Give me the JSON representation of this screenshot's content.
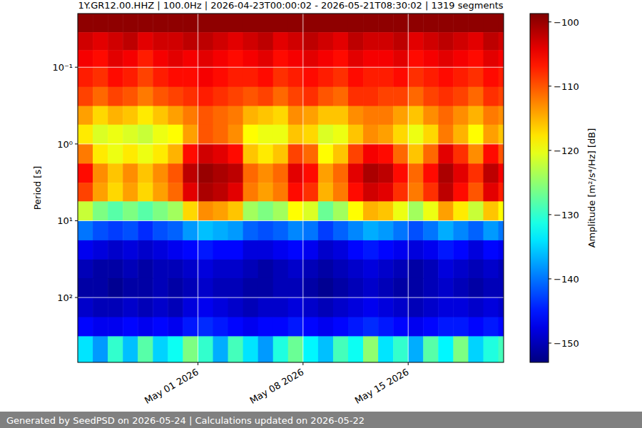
{
  "chart_data": {
    "type": "heatmap",
    "title": "1Y.GR12.00.HHZ | 100.0Hz | 2026-04-23T00:00:02 - 2026-05-21T08:30:02 | 1319 segments",
    "y_label": "Period [s]",
    "log": "y",
    "grid": true,
    "xlim": [
      "2026-04-23T00:00:02",
      "2026-05-21T08:30:02"
    ],
    "xticks": [
      {
        "value": "2026-05-01T00:00:00",
        "label": "May 01 2026"
      },
      {
        "value": "2026-05-08T00:00:00",
        "label": "May 08 2026"
      },
      {
        "value": "2026-05-15T00:00:00",
        "label": "May 15 2026"
      }
    ],
    "ylim": [
      0.02,
      700
    ],
    "yticks": [
      {
        "value": 0.1,
        "label": "10⁻¹"
      },
      {
        "value": 1,
        "label": "10⁰"
      },
      {
        "value": 10,
        "label": "10¹"
      },
      {
        "value": 100,
        "label": "10²"
      }
    ],
    "x": [
      "2026-04-23T00:00:02",
      "2026-04-24T00:00:02",
      "2026-04-25T00:00:02",
      "2026-04-26T00:00:02",
      "2026-04-27T00:00:02",
      "2026-04-28T00:00:02",
      "2026-04-29T00:00:02",
      "2026-04-30T00:00:02",
      "2026-05-01T00:00:02",
      "2026-05-02T00:00:02",
      "2026-05-03T00:00:02",
      "2026-05-04T00:00:02",
      "2026-05-05T00:00:02",
      "2026-05-06T00:00:02",
      "2026-05-07T00:00:02",
      "2026-05-08T00:00:02",
      "2026-05-09T00:00:02",
      "2026-05-10T00:00:02",
      "2026-05-11T00:00:02",
      "2026-05-12T00:00:02",
      "2026-05-13T00:00:02",
      "2026-05-14T00:00:02",
      "2026-05-15T00:00:02",
      "2026-05-16T00:00:02",
      "2026-05-17T00:00:02",
      "2026-05-18T00:00:02",
      "2026-05-19T00:00:02",
      "2026-05-20T00:00:02",
      "2026-05-21T00:00:02",
      "2026-05-21T08:30:02"
    ],
    "y": [
      0.02,
      0.035,
      0.06,
      0.1,
      0.18,
      0.32,
      0.56,
      1,
      1.8,
      3.2,
      5.6,
      10,
      18,
      32,
      56,
      100,
      180,
      320,
      700
    ],
    "values": [
      [
        -99.5,
        -99.5,
        -99.5,
        -99.5,
        -99.5,
        -99.5,
        -99.5,
        -99.5,
        -99.5,
        -99.5,
        -99.5,
        -99.5,
        -99.5,
        -99.5,
        -99.5,
        -99.5,
        -99.5,
        -99.5,
        -99.5,
        -99.5,
        -99.5,
        -99.5,
        -99.5,
        -99.5,
        -99.5,
        -99.5,
        -99.5,
        -99.5,
        -99.5
      ],
      [
        -103,
        -104,
        -103,
        -102,
        -104,
        -103,
        -103,
        -102,
        -102,
        -103,
        -104,
        -103,
        -102,
        -104,
        -103,
        -102,
        -103,
        -104,
        -102,
        -103,
        -103,
        -102,
        -104,
        -103,
        -102,
        -103,
        -104,
        -102,
        -103
      ],
      [
        -105,
        -106,
        -104,
        -105,
        -107,
        -105,
        -104,
        -105,
        -104,
        -105,
        -106,
        -105,
        -104,
        -106,
        -105,
        -104,
        -105,
        -106,
        -104,
        -105,
        -105,
        -104,
        -106,
        -105,
        -104,
        -105,
        -106,
        -104,
        -105
      ],
      [
        -107,
        -108,
        -106,
        -107,
        -109,
        -107,
        -106,
        -106,
        -105,
        -106,
        -107,
        -107,
        -106,
        -108,
        -107,
        -106,
        -107,
        -108,
        -106,
        -107,
        -107,
        -106,
        -108,
        -107,
        -106,
        -107,
        -108,
        -106,
        -107
      ],
      [
        -109,
        -111,
        -109,
        -110,
        -112,
        -110,
        -109,
        -108,
        -107,
        -108,
        -109,
        -110,
        -109,
        -111,
        -109,
        -108,
        -110,
        -111,
        -108,
        -108,
        -109,
        -109,
        -111,
        -109,
        -108,
        -109,
        -111,
        -108,
        -109
      ],
      [
        -114,
        -117,
        -115,
        -116,
        -118,
        -116,
        -114,
        -112,
        -110,
        -111,
        -112,
        -115,
        -116,
        -117,
        -113,
        -114,
        -116,
        -116,
        -113,
        -112,
        -112,
        -114,
        -116,
        -113,
        -111,
        -113,
        -115,
        -112,
        -113
      ],
      [
        -118,
        -121,
        -120,
        -121,
        -122,
        -120,
        -119,
        -114,
        -110,
        -111,
        -113,
        -119,
        -120,
        -120,
        -116,
        -117,
        -121,
        -120,
        -116,
        -113,
        -114,
        -117,
        -120,
        -117,
        -112,
        -115,
        -119,
        -114,
        -116
      ],
      [
        -112,
        -118,
        -120,
        -118,
        -120,
        -118,
        -115,
        -106,
        -103,
        -104,
        -106,
        -116,
        -118,
        -116,
        -109,
        -111,
        -119,
        -116,
        -109,
        -105,
        -106,
        -111,
        -116,
        -111,
        -104,
        -108,
        -113,
        -106,
        -110
      ],
      [
        -106,
        -113,
        -116,
        -113,
        -116,
        -113,
        -110,
        -102,
        -100,
        -101,
        -102,
        -111,
        -113,
        -111,
        -104,
        -106,
        -114,
        -111,
        -104,
        -101,
        -102,
        -106,
        -111,
        -106,
        -101,
        -104,
        -108,
        -102,
        -105
      ],
      [
        -109,
        -114,
        -117,
        -114,
        -117,
        -114,
        -111,
        -104,
        -101,
        -102,
        -104,
        -112,
        -114,
        -112,
        -106,
        -108,
        -115,
        -112,
        -106,
        -103,
        -104,
        -108,
        -112,
        -108,
        -102,
        -106,
        -110,
        -104,
        -107
      ],
      [
        -122,
        -126,
        -128,
        -126,
        -128,
        -126,
        -124,
        -117,
        -113,
        -114,
        -116,
        -124,
        -126,
        -124,
        -119,
        -121,
        -127,
        -124,
        -119,
        -115,
        -116,
        -120,
        -124,
        -120,
        -114,
        -118,
        -122,
        -116,
        -119
      ],
      [
        -140,
        -142,
        -143,
        -142,
        -144,
        -142,
        -141,
        -138,
        -136,
        -137,
        -138,
        -141,
        -142,
        -141,
        -139,
        -140,
        -143,
        -141,
        -139,
        -137,
        -138,
        -140,
        -142,
        -140,
        -137,
        -139,
        -141,
        -138,
        -140
      ],
      [
        -147,
        -148,
        -149,
        -148,
        -149,
        -148,
        -147,
        -146,
        -145,
        -146,
        -146,
        -148,
        -148,
        -147,
        -146,
        -147,
        -149,
        -148,
        -146,
        -145,
        -146,
        -147,
        -148,
        -147,
        -145,
        -146,
        -148,
        -146,
        -147
      ],
      [
        -150,
        -151,
        -151,
        -150,
        -151,
        -150,
        -150,
        -149,
        -148,
        -149,
        -149,
        -150,
        -151,
        -150,
        -149,
        -150,
        -151,
        -150,
        -149,
        -148,
        -149,
        -150,
        -151,
        -150,
        -148,
        -149,
        -150,
        -149,
        -150
      ],
      [
        -151,
        -151,
        -152,
        -151,
        -151,
        -150,
        -151,
        -150,
        -149,
        -150,
        -150,
        -151,
        -151,
        -150,
        -150,
        -151,
        -152,
        -151,
        -150,
        -149,
        -150,
        -151,
        -151,
        -150,
        -149,
        -150,
        -151,
        -150,
        -150
      ],
      [
        -149,
        -150,
        -150,
        -149,
        -150,
        -149,
        -150,
        -148,
        -147,
        -148,
        -149,
        -150,
        -149,
        -149,
        -148,
        -149,
        -150,
        -149,
        -148,
        -147,
        -148,
        -149,
        -150,
        -149,
        -148,
        -148,
        -149,
        -148,
        -149
      ],
      [
        -146,
        -147,
        -147,
        -146,
        -147,
        -146,
        -147,
        -145,
        -144,
        -145,
        -146,
        -147,
        -146,
        -146,
        -145,
        -146,
        -147,
        -146,
        -145,
        -144,
        -145,
        -146,
        -147,
        -146,
        -145,
        -145,
        -146,
        -145,
        -146
      ],
      [
        -134,
        -138,
        -130,
        -136,
        -128,
        -135,
        -132,
        -126,
        -130,
        -137,
        -129,
        -134,
        -138,
        -131,
        -127,
        -133,
        -136,
        -129,
        -132,
        -125,
        -134,
        -130,
        -137,
        -128,
        -133,
        -126,
        -135,
        -131,
        -129
      ]
    ],
    "colorbar": {
      "label": "Amplitude [m²/s⁴/Hz] [dB]",
      "range": [
        -153,
        -98.7
      ],
      "ticks": [
        -100,
        -110,
        -120,
        -130,
        -140,
        -150
      ]
    }
  },
  "footer": "Generated by SeedPSD on 2026-05-24 | Calculations updated on 2026-05-22"
}
